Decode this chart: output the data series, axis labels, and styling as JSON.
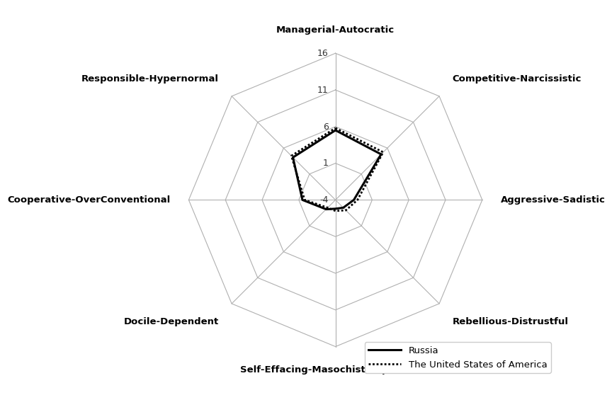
{
  "categories": [
    "Managerial-Autocratic",
    "Competitive-Narcissistic",
    "Aggressive-Sadistic",
    "Rebellious-Distrustful",
    "Self-Effacing-Masochistic (p=0,056)",
    "Docile-Dependent",
    "Cooperative-OverConventional",
    "Responsible-Hypernormal"
  ],
  "russia_values": [
    5.5,
    4.8,
    -1.5,
    -2.5,
    -2.8,
    -2.2,
    0.5,
    4.2
  ],
  "usa_values": [
    5.8,
    5.2,
    -1.0,
    -2.0,
    -2.5,
    -2.5,
    0.2,
    4.5
  ],
  "r_min": -4,
  "r_max": 16,
  "r_ticks": [
    -4,
    1,
    6,
    11,
    16
  ],
  "grid_color": "#b0b0b0",
  "russia_color": "#000000",
  "usa_color": "#000000",
  "russia_label": "Russia",
  "usa_label": "The United States of America",
  "russia_linewidth": 2.2,
  "usa_linewidth": 2.0,
  "background_color": "#ffffff"
}
